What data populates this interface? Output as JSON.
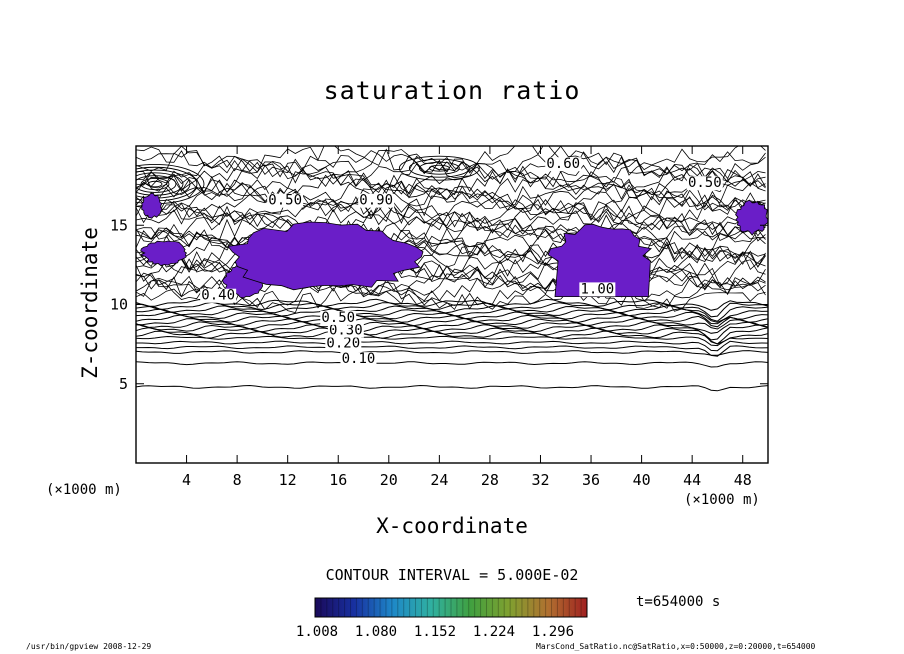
{
  "chart_data": {
    "type": "heatmap",
    "title": "saturation ratio",
    "xlabel": "X-coordinate",
    "ylabel": "Z-coordinate",
    "x_unit": "(×1000 m)",
    "z_unit": "(×1000 m)",
    "xlim": [
      0,
      50
    ],
    "ylim": [
      0,
      20
    ],
    "x_ticks": [
      4,
      8,
      12,
      16,
      20,
      24,
      28,
      32,
      36,
      40,
      44,
      48
    ],
    "y_ticks": [
      5,
      10,
      15
    ],
    "contour_interval_text": "CONTOUR INTERVAL = 5.000E-02",
    "contour_interval": 0.05,
    "time_text": "t=654000 s",
    "contour_labels": [
      {
        "text": "0.10",
        "x": 17.6,
        "z": 6.3
      },
      {
        "text": "0.20",
        "x": 16.4,
        "z": 7.3
      },
      {
        "text": "0.30",
        "x": 16.6,
        "z": 8.1
      },
      {
        "text": "0.50",
        "x": 16.0,
        "z": 8.9
      },
      {
        "text": "1.00",
        "x": 36.5,
        "z": 10.7
      },
      {
        "text": "0.60",
        "x": 33.8,
        "z": 18.6
      },
      {
        "text": "0.50",
        "x": 45.0,
        "z": 17.4
      },
      {
        "text": "0.50",
        "x": 11.8,
        "z": 16.3
      },
      {
        "text": "0.90",
        "x": 19.0,
        "z": 16.3
      },
      {
        "text": "0.40",
        "x": 6.5,
        "z": 10.3
      }
    ],
    "colorbar": {
      "ticks": [
        "1.008",
        "1.080",
        "1.152",
        "1.224",
        "1.296"
      ],
      "range": [
        1.008,
        1.34
      ],
      "colormap": [
        "#1a0a5a",
        "#1830a0",
        "#1e88c8",
        "#30b0a0",
        "#40a040",
        "#80a030",
        "#b07030",
        "#a02020"
      ]
    },
    "supersaturated_regions": [
      {
        "name": "left-upper",
        "x": [
          0.5,
          2
        ],
        "z": [
          15.5,
          17
        ]
      },
      {
        "name": "left-mid",
        "x": [
          0.5,
          4
        ],
        "z": [
          12.5,
          14
        ]
      },
      {
        "name": "left-low",
        "x": [
          7,
          10
        ],
        "z": [
          10.5,
          12.5
        ]
      },
      {
        "name": "central",
        "x": [
          7.5,
          22.5
        ],
        "z": [
          11,
          15
        ]
      },
      {
        "name": "dome",
        "x": [
          33,
          40.5
        ],
        "z": [
          10.5,
          15
        ]
      },
      {
        "name": "right-edge",
        "x": [
          47.5,
          50
        ],
        "z": [
          14.5,
          16.5
        ]
      }
    ],
    "fill_color": "#6a1ec8",
    "line_color": "#000000",
    "grid": false
  },
  "footer": {
    "left": "/usr/bin/gpview   2008-12-29",
    "right": "MarsCond_SatRatio.nc@SatRatio,x=0:50000,z=0:20000,t=654000"
  }
}
